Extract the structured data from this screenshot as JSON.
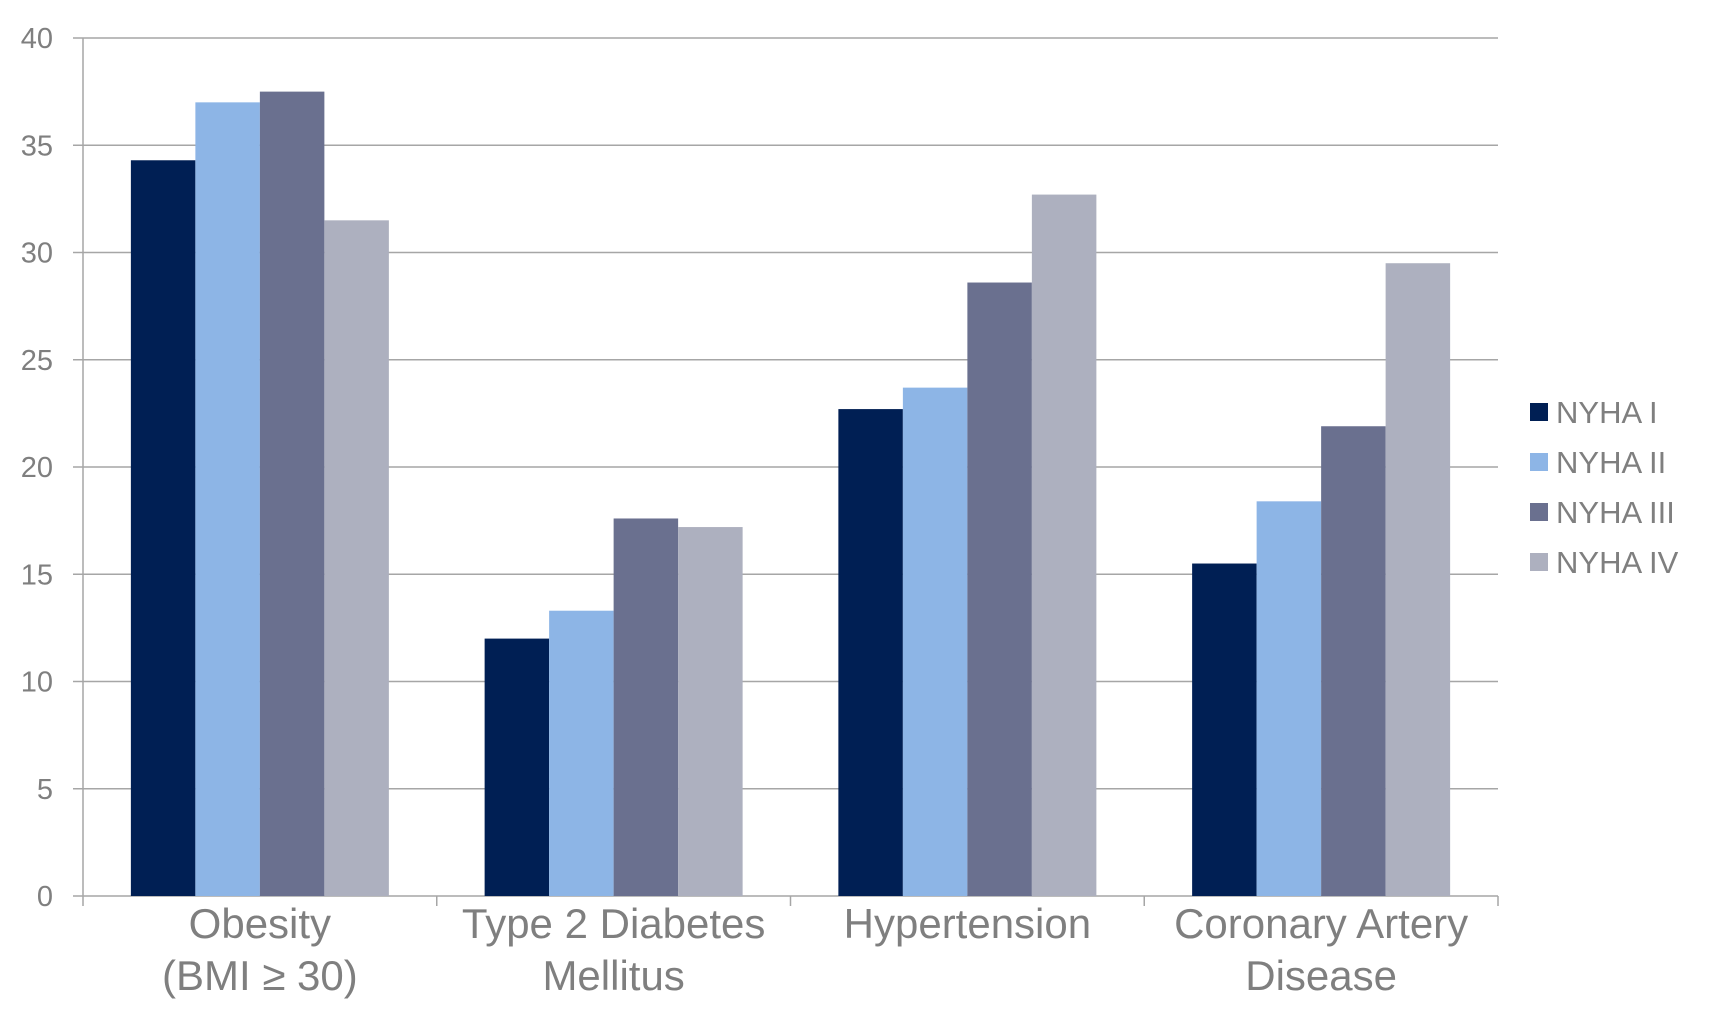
{
  "chart_data": {
    "type": "bar",
    "categories": [
      [
        "Obesity",
        "(BMI ≥ 30)"
      ],
      [
        "Type 2 Diabetes",
        "Mellitus"
      ],
      [
        "Hypertension"
      ],
      [
        "Coronary Artery",
        "Disease"
      ]
    ],
    "series": [
      {
        "name": "NYHA I",
        "color": "#001f54",
        "values": [
          34.3,
          12.0,
          22.7,
          15.5
        ]
      },
      {
        "name": "NYHA II",
        "color": "#8db5e6",
        "values": [
          37.0,
          13.3,
          23.7,
          18.4
        ]
      },
      {
        "name": "NYHA III",
        "color": "#6a708f",
        "values": [
          37.5,
          17.6,
          28.6,
          21.9
        ]
      },
      {
        "name": "NYHA IV",
        "color": "#adb0bf",
        "values": [
          31.5,
          17.2,
          32.7,
          29.5
        ]
      }
    ],
    "ylim": [
      0,
      40
    ],
    "yticks": [
      "0",
      "5",
      "10",
      "15",
      "20",
      "25",
      "30",
      "35",
      "40"
    ],
    "title": "",
    "xlabel": "",
    "ylabel": "",
    "grid": true,
    "legend": "right"
  }
}
